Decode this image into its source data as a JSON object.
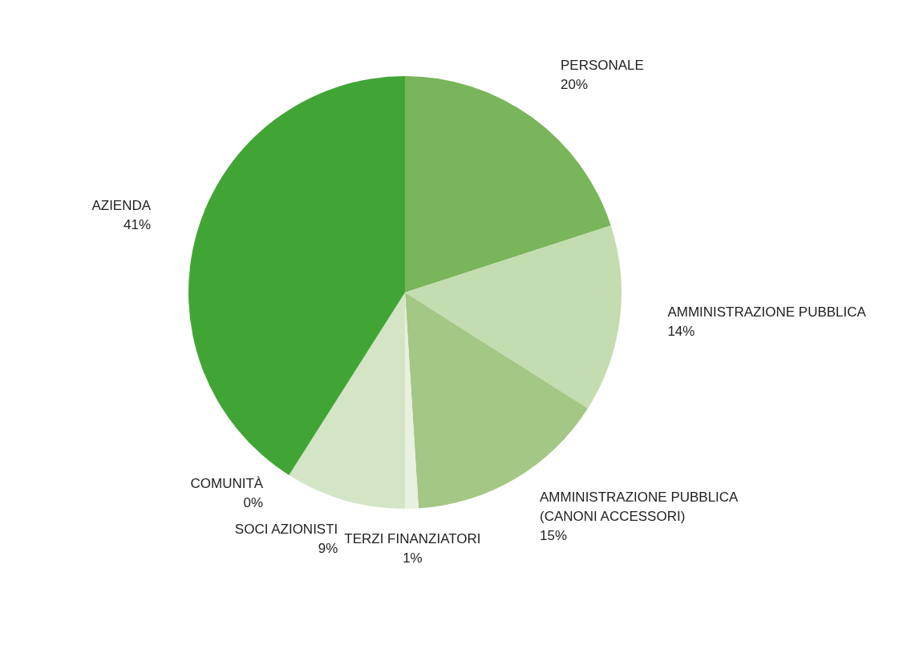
{
  "chart_data": {
    "type": "pie",
    "categories": [
      "PERSONALE",
      "AMMINISTRAZIONE PUBBLICA",
      "AMMINISTRAZIONE PUBBLICA (CANONI ACCESSORI)",
      "TERZI FINANZIATORI",
      "SOCI AZIONISTI",
      "COMUNITÀ",
      "AZIENDA"
    ],
    "values": [
      20,
      14,
      15,
      1,
      9,
      0,
      41
    ],
    "value_labels": [
      "20%",
      "14%",
      "15%",
      "1%",
      "9%",
      "0%",
      "41%"
    ],
    "colors": [
      "#79b55a",
      "#c3dcb0",
      "#a3c784",
      "#e8f0e0",
      "#d3e5c5",
      "#eef4ea",
      "#41a535"
    ],
    "legend": false
  }
}
